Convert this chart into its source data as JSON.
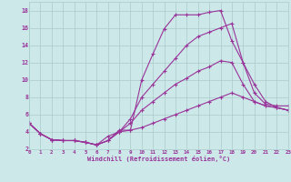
{
  "xlabel": "Windchill (Refroidissement éolien,°C)",
  "bg_color": "#cce8e8",
  "line_color": "#993399",
  "grid_color": "#aacccc",
  "xlim": [
    0,
    23
  ],
  "ylim": [
    2,
    19
  ],
  "yticks": [
    2,
    4,
    6,
    8,
    10,
    12,
    14,
    16,
    18
  ],
  "xticks": [
    0,
    1,
    2,
    3,
    4,
    5,
    6,
    7,
    8,
    9,
    10,
    11,
    12,
    13,
    14,
    15,
    16,
    17,
    18,
    19,
    20,
    21,
    22,
    23
  ],
  "line1_x": [
    0,
    1,
    2,
    3,
    4,
    5,
    6,
    7,
    8,
    9,
    10,
    11,
    12,
    13,
    14,
    15,
    16,
    17,
    18,
    19,
    20,
    21,
    22,
    23
  ],
  "line1_y": [
    5.0,
    3.8,
    3.1,
    3.0,
    3.0,
    2.8,
    2.5,
    3.0,
    4.2,
    4.2,
    10.0,
    13.0,
    15.9,
    17.5,
    17.5,
    17.5,
    17.8,
    18.0,
    14.5,
    12.0,
    8.5,
    7.2,
    7.0,
    7.0
  ],
  "line2_x": [
    0,
    1,
    2,
    3,
    4,
    5,
    6,
    7,
    8,
    9,
    10,
    11,
    12,
    13,
    14,
    15,
    16,
    17,
    18,
    19,
    20,
    21,
    22,
    23
  ],
  "line2_y": [
    5.0,
    3.8,
    3.1,
    3.0,
    3.0,
    2.8,
    2.5,
    3.0,
    4.0,
    5.5,
    8.0,
    9.5,
    11.0,
    12.5,
    14.0,
    15.0,
    15.5,
    16.0,
    16.5,
    12.0,
    9.5,
    7.5,
    6.8,
    6.5
  ],
  "line3_x": [
    0,
    1,
    2,
    3,
    4,
    5,
    6,
    7,
    8,
    9,
    10,
    11,
    12,
    13,
    14,
    15,
    16,
    17,
    18,
    19,
    20,
    21,
    22,
    23
  ],
  "line3_y": [
    5.0,
    3.8,
    3.1,
    3.0,
    3.0,
    2.8,
    2.5,
    3.5,
    4.0,
    5.0,
    6.5,
    7.5,
    8.5,
    9.5,
    10.2,
    11.0,
    11.5,
    12.2,
    12.0,
    9.5,
    7.5,
    7.0,
    6.8,
    6.5
  ],
  "line4_x": [
    0,
    1,
    2,
    3,
    4,
    5,
    6,
    7,
    8,
    9,
    10,
    11,
    12,
    13,
    14,
    15,
    16,
    17,
    18,
    19,
    20,
    21,
    22,
    23
  ],
  "line4_y": [
    5.0,
    3.8,
    3.1,
    3.0,
    3.0,
    2.8,
    2.5,
    3.0,
    4.0,
    4.2,
    4.5,
    5.0,
    5.5,
    6.0,
    6.5,
    7.0,
    7.5,
    8.0,
    8.5,
    8.0,
    7.5,
    7.0,
    6.8,
    6.5
  ]
}
